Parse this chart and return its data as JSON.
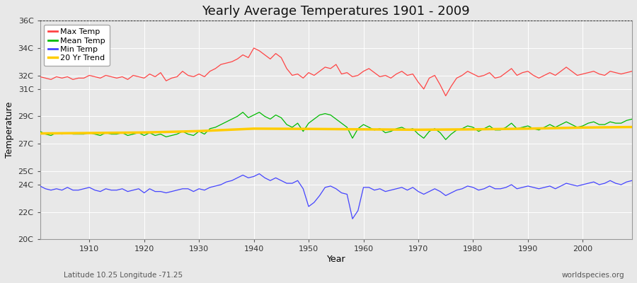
{
  "title": "Yearly Average Temperatures 1901 - 2009",
  "xlabel": "Year",
  "ylabel": "Temperature",
  "bottom_left_label": "Latitude 10.25 Longitude -71.25",
  "bottom_right_label": "worldspecies.org",
  "years": [
    1901,
    1902,
    1903,
    1904,
    1905,
    1906,
    1907,
    1908,
    1909,
    1910,
    1911,
    1912,
    1913,
    1914,
    1915,
    1916,
    1917,
    1918,
    1919,
    1920,
    1921,
    1922,
    1923,
    1924,
    1925,
    1926,
    1927,
    1928,
    1929,
    1930,
    1931,
    1932,
    1933,
    1934,
    1935,
    1936,
    1937,
    1938,
    1939,
    1940,
    1941,
    1942,
    1943,
    1944,
    1945,
    1946,
    1947,
    1948,
    1949,
    1950,
    1951,
    1952,
    1953,
    1954,
    1955,
    1956,
    1957,
    1958,
    1959,
    1960,
    1961,
    1962,
    1963,
    1964,
    1965,
    1966,
    1967,
    1968,
    1969,
    1970,
    1971,
    1972,
    1973,
    1974,
    1975,
    1976,
    1977,
    1978,
    1979,
    1980,
    1981,
    1982,
    1983,
    1984,
    1985,
    1986,
    1987,
    1988,
    1989,
    1990,
    1991,
    1992,
    1993,
    1994,
    1995,
    1996,
    1997,
    1998,
    1999,
    2000,
    2001,
    2002,
    2003,
    2004,
    2005,
    2006,
    2007,
    2008,
    2009
  ],
  "max_temp": [
    31.9,
    31.8,
    31.7,
    31.9,
    31.8,
    31.9,
    31.7,
    31.8,
    31.8,
    32.0,
    31.9,
    31.8,
    32.0,
    31.9,
    31.8,
    31.9,
    31.7,
    32.0,
    31.9,
    31.8,
    32.1,
    31.9,
    32.2,
    31.6,
    31.8,
    31.9,
    32.3,
    32.0,
    31.9,
    32.1,
    31.9,
    32.3,
    32.5,
    32.8,
    32.9,
    33.0,
    33.2,
    33.5,
    33.3,
    34.0,
    33.8,
    33.5,
    33.2,
    33.6,
    33.3,
    32.5,
    32.0,
    32.1,
    31.8,
    32.2,
    32.0,
    32.3,
    32.6,
    32.5,
    32.8,
    32.1,
    32.2,
    31.9,
    32.0,
    32.3,
    32.5,
    32.2,
    31.9,
    32.0,
    31.8,
    32.1,
    32.3,
    32.0,
    32.1,
    31.5,
    31.0,
    31.8,
    32.0,
    31.3,
    30.5,
    31.2,
    31.8,
    32.0,
    32.3,
    32.1,
    31.9,
    32.0,
    32.2,
    31.8,
    31.9,
    32.2,
    32.5,
    32.0,
    32.2,
    32.3,
    32.0,
    31.8,
    32.0,
    32.2,
    32.0,
    32.3,
    32.6,
    32.3,
    32.0,
    32.1,
    32.2,
    32.3,
    32.1,
    32.0,
    32.3,
    32.2,
    32.1,
    32.2,
    32.3
  ],
  "mean_temp": [
    27.9,
    27.7,
    27.6,
    27.8,
    27.7,
    27.8,
    27.7,
    27.7,
    27.7,
    27.8,
    27.7,
    27.6,
    27.8,
    27.7,
    27.7,
    27.8,
    27.6,
    27.7,
    27.8,
    27.6,
    27.8,
    27.6,
    27.7,
    27.5,
    27.6,
    27.7,
    27.9,
    27.7,
    27.6,
    27.9,
    27.7,
    28.1,
    28.2,
    28.4,
    28.6,
    28.8,
    29.0,
    29.3,
    28.9,
    29.1,
    29.3,
    29.0,
    28.8,
    29.1,
    28.9,
    28.4,
    28.2,
    28.5,
    27.9,
    28.5,
    28.8,
    29.1,
    29.2,
    29.1,
    28.8,
    28.5,
    28.2,
    27.4,
    28.1,
    28.4,
    28.2,
    28.0,
    28.1,
    27.8,
    27.9,
    28.1,
    28.2,
    28.0,
    28.1,
    27.7,
    27.4,
    27.9,
    28.1,
    27.8,
    27.3,
    27.7,
    28.0,
    28.1,
    28.3,
    28.2,
    27.9,
    28.1,
    28.3,
    28.0,
    28.0,
    28.2,
    28.5,
    28.1,
    28.2,
    28.3,
    28.1,
    28.0,
    28.2,
    28.4,
    28.2,
    28.4,
    28.6,
    28.4,
    28.2,
    28.3,
    28.5,
    28.6,
    28.4,
    28.4,
    28.6,
    28.5,
    28.5,
    28.7,
    28.8
  ],
  "min_temp": [
    23.9,
    23.7,
    23.6,
    23.7,
    23.6,
    23.8,
    23.6,
    23.6,
    23.7,
    23.8,
    23.6,
    23.5,
    23.7,
    23.6,
    23.6,
    23.7,
    23.5,
    23.6,
    23.7,
    23.4,
    23.7,
    23.5,
    23.5,
    23.4,
    23.5,
    23.6,
    23.7,
    23.7,
    23.5,
    23.7,
    23.6,
    23.8,
    23.9,
    24.0,
    24.2,
    24.3,
    24.5,
    24.7,
    24.5,
    24.6,
    24.8,
    24.5,
    24.3,
    24.5,
    24.3,
    24.1,
    24.1,
    24.3,
    23.7,
    22.4,
    22.7,
    23.2,
    23.8,
    23.9,
    23.7,
    23.4,
    23.3,
    21.5,
    22.1,
    23.8,
    23.8,
    23.6,
    23.7,
    23.5,
    23.6,
    23.7,
    23.8,
    23.6,
    23.8,
    23.5,
    23.3,
    23.5,
    23.7,
    23.5,
    23.2,
    23.4,
    23.6,
    23.7,
    23.9,
    23.8,
    23.6,
    23.7,
    23.9,
    23.7,
    23.7,
    23.8,
    24.0,
    23.7,
    23.8,
    23.9,
    23.8,
    23.7,
    23.8,
    23.9,
    23.7,
    23.9,
    24.1,
    24.0,
    23.9,
    24.0,
    24.1,
    24.2,
    24.0,
    24.1,
    24.3,
    24.1,
    24.0,
    24.2,
    24.3
  ],
  "trend_years": [
    1901,
    1910,
    1920,
    1930,
    1940,
    1950,
    1960,
    1970,
    1980,
    1990,
    2000,
    2009
  ],
  "trend_temp": [
    27.75,
    27.78,
    27.82,
    27.92,
    28.1,
    28.08,
    28.05,
    28.02,
    28.05,
    28.1,
    28.18,
    28.22
  ],
  "max_color": "#ff4444",
  "mean_color": "#00bb00",
  "min_color": "#4444ff",
  "trend_color": "#ffcc00",
  "bg_color": "#e8e8e8",
  "plot_bg_color": "#e8e8e8",
  "grid_color": "#ffffff",
  "ylim_min": 20,
  "ylim_max": 36,
  "yticks": [
    20,
    22,
    24,
    25,
    27,
    29,
    31,
    32,
    34,
    36
  ],
  "ytick_labels": [
    "20C",
    "22C",
    "24C",
    "25C",
    "27C",
    "29C",
    "31C",
    "32C",
    "34C",
    "36C"
  ],
  "xlim_min": 1901,
  "xlim_max": 2009,
  "xticks": [
    1910,
    1920,
    1930,
    1940,
    1950,
    1960,
    1970,
    1980,
    1990,
    2000
  ],
  "dotted_line_y": 36,
  "title_fontsize": 13,
  "legend_items": [
    "Max Temp",
    "Mean Temp",
    "Min Temp",
    "20 Yr Trend"
  ],
  "legend_colors": [
    "#ff4444",
    "#00bb00",
    "#4444ff",
    "#ffcc00"
  ]
}
